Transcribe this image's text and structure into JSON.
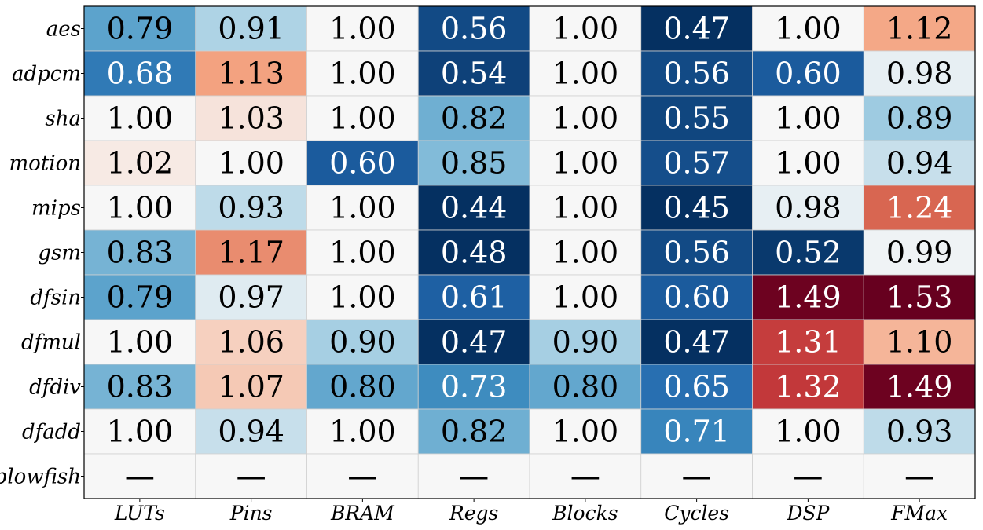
{
  "chart_data": {
    "type": "heatmap",
    "title": "",
    "xlabel": "",
    "ylabel": "",
    "rows": [
      "aes",
      "adpcm",
      "sha",
      "motion",
      "mips",
      "gsm",
      "dfsin",
      "dfmul",
      "dfdiv",
      "dfadd",
      "blowfish"
    ],
    "columns": [
      "LUTs",
      "Pins",
      "BRAM",
      "Regs",
      "Blocks",
      "Cycles",
      "DSP",
      "FMax"
    ],
    "values": [
      [
        0.79,
        0.91,
        1.0,
        0.56,
        1.0,
        0.47,
        1.0,
        1.12
      ],
      [
        0.68,
        1.13,
        1.0,
        0.54,
        1.0,
        0.56,
        0.6,
        0.98
      ],
      [
        1.0,
        1.03,
        1.0,
        0.82,
        1.0,
        0.55,
        1.0,
        0.89
      ],
      [
        1.02,
        1.0,
        0.6,
        0.85,
        1.0,
        0.57,
        1.0,
        0.94
      ],
      [
        1.0,
        0.93,
        1.0,
        0.44,
        1.0,
        0.45,
        0.98,
        1.24
      ],
      [
        0.83,
        1.17,
        1.0,
        0.48,
        1.0,
        0.56,
        0.52,
        0.99
      ],
      [
        0.79,
        0.97,
        1.0,
        0.61,
        1.0,
        0.6,
        1.49,
        1.53
      ],
      [
        1.0,
        1.06,
        0.9,
        0.47,
        0.9,
        0.47,
        1.31,
        1.1
      ],
      [
        0.83,
        1.07,
        0.8,
        0.73,
        0.8,
        0.65,
        1.32,
        1.49
      ],
      [
        1.0,
        0.94,
        1.0,
        0.82,
        1.0,
        0.71,
        1.0,
        0.93
      ],
      [
        null,
        null,
        null,
        null,
        null,
        null,
        null,
        null
      ]
    ],
    "missing_label": "—",
    "colormap": "RdBu_r",
    "color_center": 1.0,
    "grid": true,
    "legend": "none"
  }
}
